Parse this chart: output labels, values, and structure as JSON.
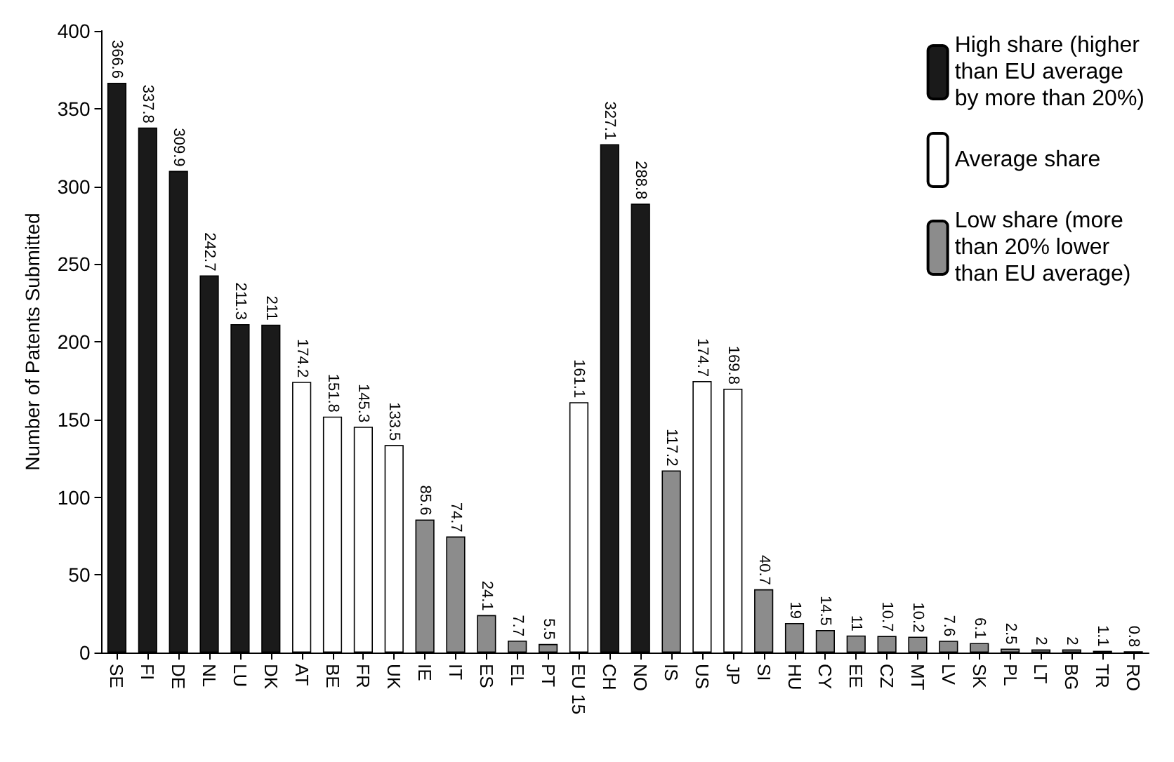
{
  "chart_data": {
    "type": "bar",
    "ylabel": "Number of Patents Submitted",
    "categories": [
      "SE",
      "FI",
      "DE",
      "NL",
      "LU",
      "DK",
      "AT",
      "BE",
      "FR",
      "UK",
      "IE",
      "IT",
      "ES",
      "EL",
      "PT",
      "EU 15",
      "CH",
      "NO",
      "IS",
      "US",
      "JP",
      "SI",
      "HU",
      "CY",
      "EE",
      "CZ",
      "MT",
      "LV",
      "SK",
      "PL",
      "LT",
      "BG",
      "TR",
      "RO"
    ],
    "series": [
      {
        "name": "High share (higher\nthan EU average\nby more than 20%)",
        "color": "#1a1a1a",
        "values": [
          366.6,
          337.8,
          309.9,
          242.7,
          211.3,
          211,
          null,
          null,
          null,
          null,
          null,
          null,
          null,
          null,
          null,
          null,
          327.1,
          288.8,
          null,
          null,
          null,
          null,
          null,
          null,
          null,
          null,
          null,
          null,
          null,
          null,
          null,
          null,
          null,
          null
        ]
      },
      {
        "name": "Average share",
        "color": "#ffffff",
        "values": [
          null,
          null,
          null,
          null,
          null,
          null,
          174.2,
          151.8,
          145.3,
          133.5,
          null,
          null,
          null,
          null,
          null,
          161.1,
          null,
          null,
          null,
          174.7,
          169.8,
          null,
          null,
          null,
          null,
          null,
          null,
          null,
          null,
          null,
          null,
          null,
          null,
          null
        ]
      },
      {
        "name": "Low share (more\nthan 20% lower\nthan EU average)",
        "color": "#8c8c8c",
        "values": [
          null,
          null,
          null,
          null,
          null,
          null,
          null,
          null,
          null,
          null,
          85.6,
          74.7,
          24.1,
          7.7,
          5.5,
          null,
          null,
          null,
          117.2,
          null,
          null,
          40.7,
          19,
          14.5,
          11,
          10.7,
          10.2,
          7.6,
          6.1,
          2.5,
          2,
          2,
          1.1,
          0.8
        ]
      }
    ],
    "ylim": [
      0,
      400
    ],
    "yticks": [
      0,
      50,
      100,
      150,
      200,
      250,
      300,
      350,
      400
    ],
    "grid": false,
    "legend": "top right",
    "data_labels": true
  }
}
